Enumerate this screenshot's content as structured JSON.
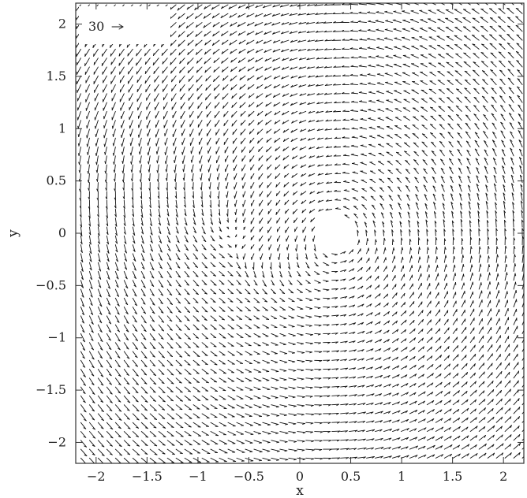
{
  "chart_data": {
    "type": "vector-field",
    "title": "",
    "xlabel": "x",
    "ylabel": "y",
    "xlim": [
      -2.2,
      2.2
    ],
    "ylim": [
      -2.2,
      2.2
    ],
    "xticks": [
      -2,
      -1.5,
      -1,
      -0.5,
      0,
      0.5,
      1,
      1.5,
      2
    ],
    "xtick_labels": [
      "−2",
      "−1.5",
      "−1",
      "−0.5",
      "0",
      "0.5",
      "1",
      "1.5",
      "2"
    ],
    "yticks": [
      2,
      1.5,
      1,
      0.5,
      0,
      -0.5,
      -1,
      -1.5,
      -2
    ],
    "ytick_labels": [
      "2",
      "1.5",
      "1",
      "0.5",
      "0",
      "−0.5",
      "−1",
      "−1.5",
      "−2"
    ],
    "key": {
      "value": 30,
      "label": "30"
    },
    "features": {
      "hole": {
        "x": 0.35,
        "y": 0.0,
        "radius": 0.18
      },
      "focus": {
        "x": -0.65,
        "y": 0.0
      }
    },
    "grid": false
  }
}
